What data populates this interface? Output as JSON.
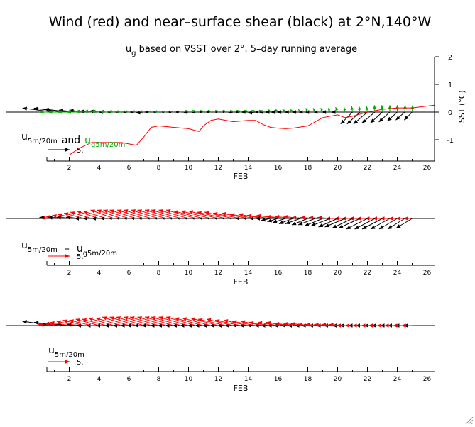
{
  "title": "Wind (red) and near–surface shear (black) at 2°N,140°W",
  "subtitle": {
    "prefix": "u",
    "sub": "g",
    "rest": " based on ∇SST over 2°. 5–day running average"
  },
  "colors": {
    "wind": "#ff0000",
    "shear": "#000000",
    "geostrophic": "#00aa00",
    "sst_line": "#ff0000",
    "axis": "#000000"
  },
  "chart_data": [
    {
      "type": "line",
      "name": "panel-1",
      "xlabel": "FEB",
      "x_ticks": [
        2,
        4,
        6,
        8,
        10,
        12,
        14,
        16,
        18,
        20,
        22,
        24,
        26
      ],
      "xlim": [
        0.5,
        26.5
      ],
      "ylabel": "SST (°C)",
      "y_ticks": [
        -1,
        0,
        1,
        2
      ],
      "ylim": [
        -1.6,
        2.0
      ],
      "legend": {
        "label_a_main": "u",
        "label_a_sub": "5m/20m",
        "and_text": "and",
        "label_b_main": "u",
        "label_b_sub": "g5m/20m",
        "scale_value": "5."
      },
      "sst_series": {
        "x": [
          2.0,
          2.7,
          3.5,
          4.5,
          5.5,
          6.5,
          7.0,
          7.5,
          8.0,
          9.0,
          10.0,
          10.7,
          11.0,
          11.5,
          12.0,
          13.0,
          14.0,
          14.5,
          15.0,
          15.5,
          16.0,
          16.5,
          17.0,
          18.0,
          19.0,
          20.0,
          20.5,
          21.0,
          22.0,
          23.0,
          24.0,
          25.0,
          26.5
        ],
        "y": [
          -1.55,
          -1.3,
          -1.1,
          -1.1,
          -1.1,
          -1.2,
          -0.9,
          -0.55,
          -0.5,
          -0.55,
          -0.6,
          -0.7,
          -0.5,
          -0.3,
          -0.25,
          -0.35,
          -0.3,
          -0.3,
          -0.45,
          -0.55,
          -0.58,
          -0.6,
          -0.58,
          -0.5,
          -0.2,
          -0.1,
          -0.2,
          -0.15,
          0.0,
          0.1,
          0.15,
          0.15,
          0.25
        ]
      },
      "vector_series": [
        {
          "role": "shear",
          "x": [
            1,
            1.5,
            2,
            2.5,
            3,
            3.5,
            4,
            4.5,
            5,
            5.5,
            6,
            6.5,
            7,
            7.5,
            8,
            8.5,
            9,
            9.5,
            10,
            10.5,
            11,
            11.5,
            12,
            12.5,
            13,
            13.5,
            14,
            14.5,
            15,
            15.5,
            16,
            16.5,
            17,
            17.5,
            18,
            18.5,
            19,
            19.5,
            20,
            20.5,
            21,
            21.5,
            22,
            22.5,
            23,
            23.5,
            24,
            24.5,
            25
          ],
          "u": [
            -3.2,
            -2.8,
            -2.5,
            -1.8,
            -1.5,
            -1.2,
            -1.0,
            -0.8,
            -0.7,
            -0.6,
            -0.6,
            -0.7,
            -0.8,
            -0.7,
            -0.6,
            -0.5,
            -0.6,
            -0.6,
            -0.5,
            -0.4,
            -0.5,
            -0.5,
            -0.4,
            -0.4,
            -0.5,
            -0.6,
            -0.7,
            -0.8,
            -0.9,
            -1.2,
            -1.3,
            -1.5,
            -1.6,
            -1.6,
            -1.6,
            -1.7,
            -1.8,
            -1.7,
            -1.6,
            -1.4,
            -1.2,
            -1.3,
            -1.4,
            -1.3,
            -1.2,
            -1.1,
            -1.0,
            -0.9,
            -0.8
          ],
          "v": [
            0.4,
            0.4,
            0.3,
            0.2,
            0.2,
            0.1,
            0.1,
            0.0,
            0.0,
            0.0,
            0.0,
            0.0,
            -0.1,
            0.0,
            0.0,
            0.0,
            0.0,
            0.0,
            -0.1,
            -0.1,
            0.0,
            0.0,
            0.0,
            0.0,
            -0.1,
            0.0,
            0.0,
            -0.1,
            0.0,
            0.0,
            0.0,
            0.0,
            0.0,
            0.0,
            0.0,
            0.0,
            0.0,
            0.0,
            0.0,
            0.0,
            -1.2,
            -1.2,
            -1.2,
            -1.1,
            -1.1,
            -1.0,
            -0.9,
            -0.8,
            -0.8
          ]
        },
        {
          "role": "geostrophic",
          "x": [
            1,
            1.5,
            2,
            2.5,
            3,
            3.5,
            4,
            4.5,
            5,
            5.5,
            6,
            6.5,
            7,
            7.5,
            8,
            8.5,
            9,
            9.5,
            10,
            10.5,
            11,
            11.5,
            12,
            12.5,
            13,
            13.5,
            14,
            14.5,
            15,
            15.5,
            16,
            16.5,
            17,
            17.5,
            18,
            18.5,
            19,
            19.5,
            20,
            20.5,
            21,
            21.5,
            22,
            22.5,
            23,
            23.5,
            24,
            24.5,
            25
          ],
          "u": [
            -1.5,
            -1.4,
            -1.2,
            -1.0,
            -0.9,
            -0.8,
            -0.8,
            -0.7,
            -0.6,
            -0.6,
            -0.5,
            -0.5,
            -0.5,
            -0.4,
            -0.5,
            -0.4,
            -0.4,
            -0.3,
            -0.3,
            -0.4,
            -0.3,
            -0.3,
            -0.3,
            -0.3,
            -0.3,
            -0.4,
            -0.4,
            -0.4,
            -0.4,
            -0.3,
            -0.3,
            -0.3,
            -0.3,
            -0.2,
            -0.2,
            -0.2,
            -0.2,
            -0.2,
            -0.2,
            -0.1,
            -0.1,
            -0.1,
            -0.1,
            -0.05,
            -0.05,
            0.0,
            0.0,
            0.05,
            0.05
          ],
          "v": [
            0.0,
            0.0,
            0.0,
            0.0,
            0.1,
            0.1,
            0.1,
            0.1,
            0.1,
            0.1,
            0.1,
            0.1,
            0.1,
            0.1,
            0.1,
            0.1,
            0.1,
            0.1,
            0.2,
            0.2,
            0.2,
            0.2,
            0.2,
            0.2,
            0.2,
            0.2,
            0.2,
            0.2,
            0.2,
            0.3,
            0.3,
            0.3,
            0.3,
            0.3,
            0.4,
            0.4,
            0.4,
            0.4,
            0.5,
            0.5,
            0.6,
            0.6,
            0.6,
            0.7,
            0.7,
            0.7,
            0.7,
            0.7,
            0.7
          ]
        }
      ]
    },
    {
      "type": "line",
      "name": "panel-2",
      "xlabel": "FEB",
      "x_ticks": [
        2,
        4,
        6,
        8,
        10,
        12,
        14,
        16,
        18,
        20,
        22,
        24,
        26
      ],
      "xlim": [
        0.5,
        26.5
      ],
      "legend": {
        "label_a_main": "u",
        "label_a_sub": "5m/20m",
        "minus_text": "–",
        "label_b_main": "u",
        "label_b_sub": "g5m/20m",
        "scale_value": "5."
      },
      "vector_series": [
        {
          "role": "wind",
          "x": [
            1,
            1.5,
            2,
            2.5,
            3,
            3.5,
            4,
            4.5,
            5,
            5.5,
            6,
            6.5,
            7,
            7.5,
            8,
            8.5,
            9,
            9.5,
            10,
            10.5,
            11,
            11.5,
            12,
            12.5,
            13,
            13.5,
            14,
            14.5,
            15,
            15.5,
            16,
            16.5,
            17,
            17.5,
            18,
            18.5,
            19,
            19.5,
            20,
            20.5,
            21,
            21.5,
            22,
            22.5,
            23,
            23.5,
            24,
            24.5,
            25
          ],
          "u": [
            -1.3,
            -1.5,
            -1.6,
            -1.8,
            -1.9,
            -2.0,
            -2.1,
            -2.2,
            -2.2,
            -2.3,
            -2.4,
            -2.5,
            -2.5,
            -2.6,
            -2.6,
            -2.7,
            -2.7,
            -2.8,
            -2.8,
            -2.8,
            -2.8,
            -2.8,
            -2.8,
            -2.7,
            -2.7,
            -2.6,
            -2.5,
            -2.4,
            -2.3,
            -2.2,
            -2.0,
            -1.8,
            -1.7,
            -1.6,
            -1.5,
            -1.4,
            -1.3,
            -1.2,
            -1.1,
            -1.0,
            -1.0,
            -1.0,
            -1.0,
            -0.9,
            -0.9,
            -0.9,
            -0.8,
            -0.8,
            -0.8
          ],
          "v": [
            0.1,
            0.2,
            0.3,
            0.4,
            0.5,
            0.6,
            0.7,
            0.7,
            0.8,
            0.8,
            0.8,
            0.8,
            0.8,
            0.8,
            0.8,
            0.8,
            0.8,
            0.8,
            0.8,
            0.8,
            0.7,
            0.7,
            0.7,
            0.6,
            0.6,
            0.5,
            0.5,
            0.4,
            0.4,
            0.3,
            0.3,
            0.2,
            0.2,
            0.2,
            0.1,
            0.1,
            0.1,
            0.1,
            0.0,
            0.0,
            0.0,
            0.0,
            0.0,
            0.0,
            0.0,
            0.0,
            0.0,
            0.0,
            0.0
          ]
        },
        {
          "role": "shear",
          "x": [
            1,
            1.5,
            2,
            2.5,
            3,
            3.5,
            4,
            4.5,
            5,
            5.5,
            6,
            6.5,
            7,
            7.5,
            8,
            8.5,
            9,
            9.5,
            10,
            10.5,
            11,
            11.5,
            12,
            12.5,
            13,
            13.5,
            14,
            14.5,
            15,
            15.5,
            16,
            16.5,
            17,
            17.5,
            18,
            18.5,
            19,
            19.5,
            20,
            20.5,
            21,
            21.5,
            22,
            22.5,
            23,
            23.5,
            24,
            24.5,
            25
          ],
          "u": [
            -1.4,
            -1.3,
            -1.2,
            -1.0,
            -0.9,
            -0.8,
            -0.7,
            -0.6,
            -0.5,
            -0.5,
            -0.5,
            -0.5,
            -0.5,
            -0.4,
            -0.4,
            -0.4,
            -0.4,
            -0.4,
            -0.4,
            -0.4,
            -0.4,
            -0.4,
            -0.4,
            -0.4,
            -0.4,
            -0.5,
            -0.5,
            -0.6,
            -0.7,
            -0.9,
            -1.0,
            -1.2,
            -1.3,
            -1.4,
            -1.5,
            -1.6,
            -1.7,
            -1.8,
            -1.8,
            -1.9,
            -1.9,
            -2.0,
            -2.0,
            -1.9,
            -1.9,
            -1.8,
            -1.7,
            -1.6,
            -1.5
          ],
          "v": [
            0.1,
            0.1,
            0.1,
            0.1,
            0.0,
            0.0,
            0.0,
            0.0,
            0.0,
            0.0,
            0.0,
            0.0,
            0.0,
            0.0,
            0.0,
            0.0,
            0.0,
            0.0,
            0.0,
            0.0,
            0.0,
            0.0,
            0.0,
            0.0,
            0.0,
            0.0,
            0.0,
            0.0,
            0.0,
            -0.2,
            -0.3,
            -0.4,
            -0.5,
            -0.5,
            -0.6,
            -0.6,
            -0.7,
            -0.7,
            -0.8,
            -0.8,
            -0.9,
            -0.9,
            -1.0,
            -1.0,
            -1.0,
            -1.0,
            -1.0,
            -1.0,
            -0.9
          ]
        }
      ]
    },
    {
      "type": "line",
      "name": "panel-3",
      "xlabel": "FEB",
      "x_ticks": [
        2,
        4,
        6,
        8,
        10,
        12,
        14,
        16,
        18,
        20,
        22,
        24,
        26
      ],
      "xlim": [
        0.5,
        26.5
      ],
      "legend": {
        "label_a_main": "u",
        "label_a_sub": "5m/20m",
        "scale_value": "5."
      },
      "vector_series": [
        {
          "role": "shear",
          "x": [
            1,
            1.5,
            2,
            2.5,
            3,
            3.5,
            4,
            4.5,
            5,
            5.5,
            6,
            6.5,
            7,
            7.5,
            8,
            8.5,
            9,
            9.5,
            10,
            10.5,
            11,
            11.5,
            12,
            12.5,
            13,
            13.5,
            14,
            14.5,
            15,
            15.5,
            16,
            16.5,
            17,
            17.5,
            18,
            18.5,
            19,
            19.5,
            20,
            20.5,
            21,
            21.5,
            22,
            22.5,
            23,
            23.5,
            24,
            24.5,
            25
          ],
          "u": [
            -3.0,
            -2.6,
            -2.3,
            -1.9,
            -1.6,
            -1.4,
            -1.2,
            -1.0,
            -0.9,
            -0.8,
            -0.8,
            -0.9,
            -0.9,
            -0.9,
            -0.8,
            -0.8,
            -0.8,
            -0.8,
            -0.8,
            -0.8,
            -0.8,
            -0.8,
            -0.8,
            -0.8,
            -0.8,
            -0.8,
            -0.8,
            -0.8,
            -0.8,
            -0.9,
            -1.0,
            -1.1,
            -1.1,
            -1.2,
            -1.2,
            -1.3,
            -1.3,
            -1.3,
            -1.3,
            -1.2,
            -1.2,
            -1.1,
            -1.1,
            -1.0,
            -1.0,
            -0.9,
            -0.9,
            -0.9,
            -0.8
          ],
          "v": [
            0.4,
            0.3,
            0.2,
            0.1,
            0.1,
            0.0,
            0.0,
            0.0,
            0.0,
            0.0,
            0.0,
            0.0,
            0.0,
            0.0,
            0.0,
            0.0,
            0.0,
            0.0,
            0.0,
            0.0,
            0.0,
            0.0,
            0.0,
            0.0,
            0.0,
            0.0,
            0.0,
            0.0,
            0.0,
            0.0,
            0.0,
            0.0,
            0.0,
            0.0,
            0.0,
            0.0,
            0.0,
            0.0,
            0.0,
            0.0,
            0.0,
            0.0,
            0.0,
            0.0,
            0.0,
            0.0,
            0.0,
            0.0,
            0.0
          ]
        },
        {
          "role": "wind",
          "x": [
            1,
            1.5,
            2,
            2.5,
            3,
            3.5,
            4,
            4.5,
            5,
            5.5,
            6,
            6.5,
            7,
            7.5,
            8,
            8.5,
            9,
            9.5,
            10,
            10.5,
            11,
            11.5,
            12,
            12.5,
            13,
            13.5,
            14,
            14.5,
            15,
            15.5,
            16,
            16.5,
            17,
            17.5,
            18,
            18.5,
            19,
            19.5,
            20,
            20.5,
            21,
            21.5,
            22,
            22.5,
            23,
            23.5,
            24,
            24.5,
            25
          ],
          "u": [
            -1.5,
            -1.6,
            -1.8,
            -1.9,
            -2.0,
            -2.1,
            -2.2,
            -2.3,
            -2.4,
            -2.4,
            -2.5,
            -2.5,
            -2.6,
            -2.6,
            -2.7,
            -2.7,
            -2.7,
            -2.8,
            -2.8,
            -2.8,
            -2.7,
            -2.7,
            -2.6,
            -2.6,
            -2.5,
            -2.4,
            -2.3,
            -2.2,
            -2.1,
            -2.0,
            -1.9,
            -1.8,
            -1.7,
            -1.6,
            -1.6,
            -1.6,
            -1.6,
            -1.5,
            -1.5,
            -1.5,
            -1.5,
            -1.4,
            -1.4,
            -1.3,
            -1.3,
            -1.2,
            -1.2,
            -1.1,
            -1.0
          ],
          "v": [
            0.1,
            0.2,
            0.3,
            0.4,
            0.5,
            0.5,
            0.6,
            0.6,
            0.7,
            0.7,
            0.8,
            0.8,
            0.8,
            0.8,
            0.8,
            0.8,
            0.8,
            0.8,
            0.8,
            0.8,
            0.7,
            0.7,
            0.7,
            0.6,
            0.6,
            0.5,
            0.5,
            0.4,
            0.4,
            0.3,
            0.3,
            0.3,
            0.2,
            0.2,
            0.2,
            0.1,
            0.1,
            0.1,
            0.1,
            0.1,
            0.0,
            0.0,
            0.0,
            0.0,
            0.0,
            0.0,
            0.0,
            0.0,
            0.0
          ]
        }
      ]
    }
  ]
}
